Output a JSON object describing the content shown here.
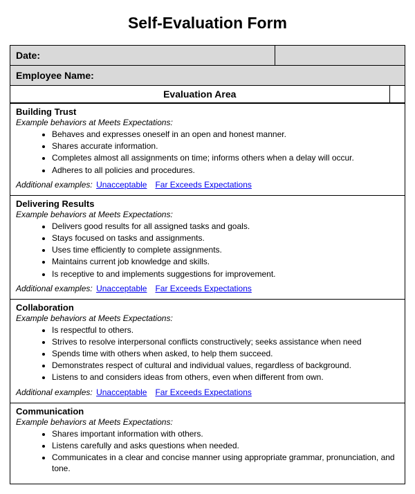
{
  "title": "Self-Evaluation Form",
  "labels": {
    "date": "Date:",
    "employee_name": "Employee Name:",
    "evaluation_area": "Evaluation Area",
    "example_behaviors": "Example behaviors at Meets Expectations:",
    "additional_examples": "Additional examples:",
    "link_unacceptable": "Unacceptable",
    "link_far_exceeds": "Far Exceeds Expectations"
  },
  "fields": {
    "date_value": "",
    "employee_name_value": ""
  },
  "colors": {
    "header_bg": "#d9d9d9",
    "border": "#000000",
    "link": "#0000ee",
    "text": "#000000",
    "background": "#ffffff"
  },
  "typography": {
    "title_fontsize": 23,
    "header_fontsize": 14,
    "body_fontsize": 12,
    "font_family": "Arial"
  },
  "sections": [
    {
      "heading": "Building Trust",
      "behaviors": [
        "Behaves and expresses oneself in an open and honest manner.",
        "Shares accurate information.",
        "Completes almost all assignments on time; informs others when a delay will occur.",
        "Adheres to all policies and procedures."
      ],
      "show_links": true
    },
    {
      "heading": "Delivering Results",
      "behaviors": [
        "Delivers good results for all assigned tasks and goals.",
        "Stays focused on tasks and assignments.",
        "Uses time efficiently to complete assignments.",
        "Maintains current job knowledge and skills.",
        "Is receptive to and implements suggestions for improvement."
      ],
      "show_links": true
    },
    {
      "heading": "Collaboration",
      "behaviors": [
        "Is respectful to others.",
        "Strives to resolve interpersonal conflicts constructively; seeks assistance when need",
        "Spends time with others when asked, to help them succeed.",
        "Demonstrates respect of cultural and individual values, regardless of background.",
        "Listens to and considers ideas from others, even when different from own."
      ],
      "show_links": true
    },
    {
      "heading": "Communication",
      "behaviors": [
        "Shares important information with others.",
        "Listens carefully and asks questions when needed.",
        "Communicates in a clear and concise manner using appropriate grammar, pronunciation, and tone."
      ],
      "show_links": false
    }
  ]
}
